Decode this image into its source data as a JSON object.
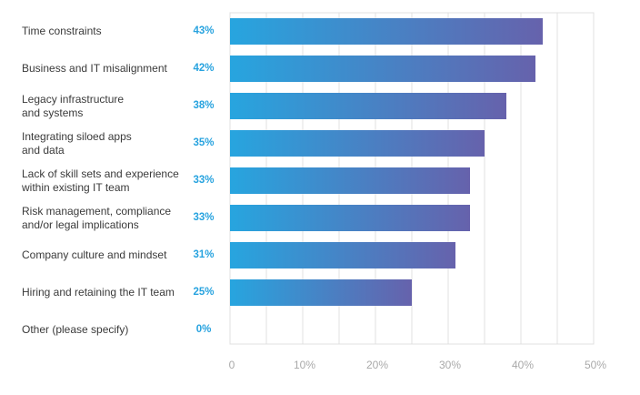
{
  "chart_data": {
    "type": "bar",
    "orientation": "horizontal",
    "title": "",
    "xlabel": "",
    "ylabel": "",
    "xlim": [
      0,
      50
    ],
    "grid": true,
    "categories": [
      "Time constraints",
      "Business and IT misalignment",
      "Legacy infrastructure\nand systems",
      "Integrating siloed apps\nand data",
      "Lack of skill sets and experience\nwithin existing IT team",
      "Risk management, compliance\nand/or legal implications",
      "Company culture and mindset",
      "Hiring and retaining the IT team",
      "Other (please specify)"
    ],
    "values": [
      43,
      42,
      38,
      35,
      33,
      33,
      31,
      25,
      0
    ],
    "value_labels": [
      "43%",
      "42%",
      "38%",
      "35%",
      "33%",
      "33%",
      "31%",
      "25%",
      "0%"
    ],
    "ticks": [
      0,
      10,
      20,
      30,
      40,
      50
    ],
    "tick_labels": [
      "0",
      "10%",
      "20%",
      "30%",
      "40%",
      "50%"
    ],
    "colors": {
      "bar_start": "#27a5df",
      "bar_end": "#6662ac",
      "value_label": "#28a3df",
      "grid": "#e0e0e0",
      "category_text": "#3a3a3a",
      "tick_text": "#a9a9a9"
    }
  }
}
